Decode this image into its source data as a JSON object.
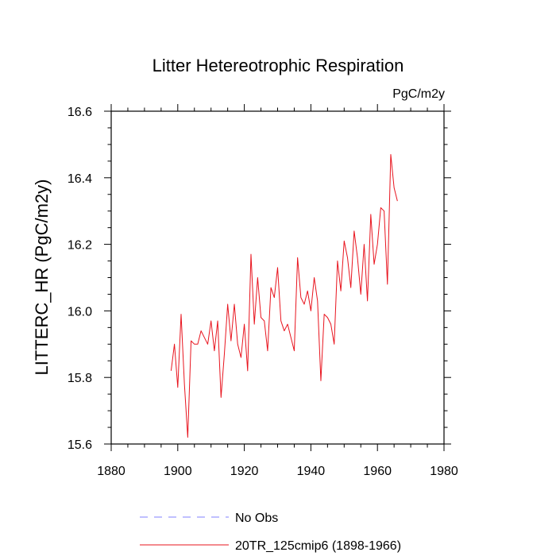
{
  "chart_data": {
    "type": "line",
    "title": "Litter Hetereotrophic Respiration",
    "units": "PgC/m2y",
    "xlabel": "",
    "ylabel": "LITTERC_HR  (PgC/m2y)",
    "xlim": [
      1880,
      1980
    ],
    "ylim": [
      15.6,
      16.6
    ],
    "xticks": [
      1880,
      1900,
      1920,
      1940,
      1960,
      1980
    ],
    "yticks": [
      15.6,
      15.8,
      16.0,
      16.2,
      16.4,
      16.6
    ],
    "ytick_labels": [
      "15.6",
      "15.8",
      "16.0",
      "16.2",
      "16.4",
      "16.6"
    ],
    "grid": false,
    "legend_position": "bottom",
    "series": [
      {
        "name": "No Obs",
        "color": "#8080ff",
        "style": "dashed",
        "x": [],
        "values": []
      },
      {
        "name": "20TR_125cmip6 (1898-1966)",
        "color": "#e8141e",
        "style": "solid",
        "x": [
          1898,
          1899,
          1900,
          1901,
          1902,
          1903,
          1904,
          1905,
          1906,
          1907,
          1908,
          1909,
          1910,
          1911,
          1912,
          1913,
          1914,
          1915,
          1916,
          1917,
          1918,
          1919,
          1920,
          1921,
          1922,
          1923,
          1924,
          1925,
          1926,
          1927,
          1928,
          1929,
          1930,
          1931,
          1932,
          1933,
          1934,
          1935,
          1936,
          1937,
          1938,
          1939,
          1940,
          1941,
          1942,
          1943,
          1944,
          1945,
          1946,
          1947,
          1948,
          1949,
          1950,
          1951,
          1952,
          1953,
          1954,
          1955,
          1956,
          1957,
          1958,
          1959,
          1960,
          1961,
          1962,
          1963,
          1964,
          1965,
          1966
        ],
        "values": [
          15.82,
          15.9,
          15.77,
          15.99,
          15.78,
          15.62,
          15.91,
          15.9,
          15.9,
          15.94,
          15.92,
          15.9,
          15.97,
          15.88,
          15.97,
          15.74,
          15.87,
          16.02,
          15.91,
          16.02,
          15.9,
          15.86,
          15.96,
          15.82,
          16.17,
          15.96,
          16.1,
          15.98,
          15.97,
          15.88,
          16.07,
          16.04,
          16.13,
          15.97,
          15.94,
          15.96,
          15.92,
          15.88,
          16.16,
          16.04,
          16.02,
          16.06,
          16.0,
          16.1,
          16.03,
          15.79,
          15.99,
          15.98,
          15.96,
          15.9,
          16.15,
          16.06,
          16.21,
          16.16,
          16.07,
          16.24,
          16.16,
          16.05,
          16.2,
          16.03,
          16.29,
          16.14,
          16.2,
          16.31,
          16.3,
          16.08,
          16.47,
          16.37,
          16.33
        ]
      }
    ]
  }
}
